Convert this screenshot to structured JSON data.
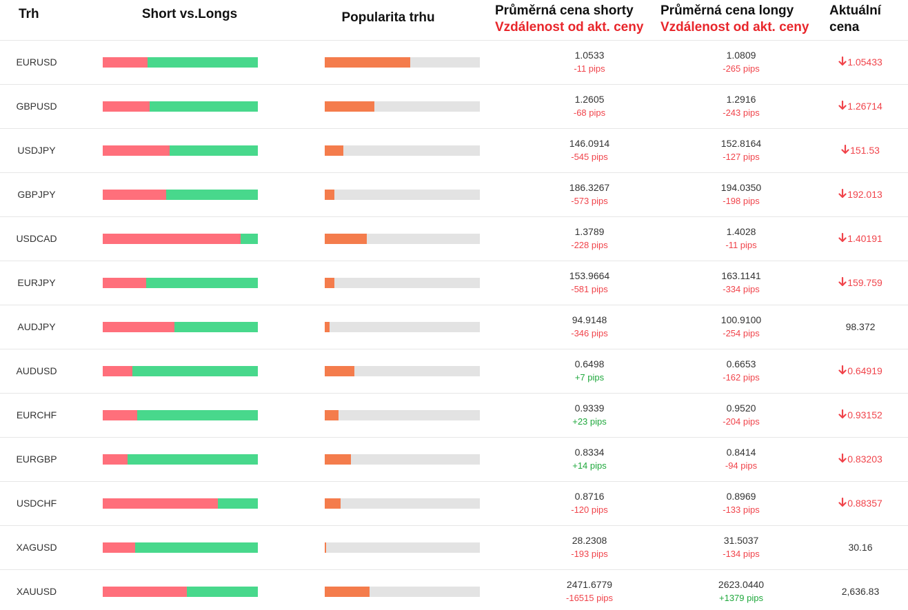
{
  "header": {
    "market": "Trh",
    "short_vs_longs": "Short vs.Longs",
    "popularity": "Popularita trhu",
    "avg_short": "Průměrná cena shorty",
    "avg_short_sub": "Vzdálenost od akt. ceny",
    "avg_long": "Průměrná cena longy",
    "avg_long_sub": "Vzdálenost od akt. ceny",
    "current_price_1": "Aktuální",
    "current_price_2": "cena"
  },
  "colors": {
    "short_bar": "#ff6f7b",
    "long_bar": "#48d88c",
    "popularity_fill": "#f47c4c",
    "popularity_track": "#e3e3e3",
    "negative": "#f0434a",
    "positive": "#1fa83c"
  },
  "rows": [
    {
      "symbol": "EURUSD",
      "short_pct": 29,
      "popularity_pct": 55,
      "short_price": "1.0533",
      "short_pips": "-11 pips",
      "long_price": "1.0809",
      "long_pips": "-265 pips",
      "current": "1.05433",
      "trend": "down",
      "icon": "arrow-down-icon"
    },
    {
      "symbol": "GBPUSD",
      "short_pct": 30,
      "popularity_pct": 32,
      "short_price": "1.2605",
      "short_pips": "-68 pips",
      "long_price": "1.2916",
      "long_pips": "-243 pips",
      "current": "1.26714",
      "trend": "down",
      "icon": "arrow-down-icon"
    },
    {
      "symbol": "USDJPY",
      "short_pct": 43,
      "popularity_pct": 12,
      "short_price": "146.0914",
      "short_pips": "-545 pips",
      "long_price": "152.8164",
      "long_pips": "-127 pips",
      "current": "151.53",
      "trend": "down",
      "icon": "arrow-down-icon"
    },
    {
      "symbol": "GBPJPY",
      "short_pct": 41,
      "popularity_pct": 6,
      "short_price": "186.3267",
      "short_pips": "-573 pips",
      "long_price": "194.0350",
      "long_pips": "-198 pips",
      "current": "192.013",
      "trend": "down",
      "icon": "arrow-down-icon"
    },
    {
      "symbol": "USDCAD",
      "short_pct": 89,
      "popularity_pct": 27,
      "short_price": "1.3789",
      "short_pips": "-228 pips",
      "long_price": "1.4028",
      "long_pips": "-11 pips",
      "current": "1.40191",
      "trend": "down",
      "icon": "arrow-down-icon"
    },
    {
      "symbol": "EURJPY",
      "short_pct": 28,
      "popularity_pct": 6,
      "short_price": "153.9664",
      "short_pips": "-581 pips",
      "long_price": "163.1141",
      "long_pips": "-334 pips",
      "current": "159.759",
      "trend": "down",
      "icon": "arrow-down-icon"
    },
    {
      "symbol": "AUDJPY",
      "short_pct": 46,
      "popularity_pct": 3,
      "short_price": "94.9148",
      "short_pips": "-346 pips",
      "long_price": "100.9100",
      "long_pips": "-254 pips",
      "current": "98.372",
      "trend": "flat",
      "icon": ""
    },
    {
      "symbol": "AUDUSD",
      "short_pct": 19,
      "popularity_pct": 19,
      "short_price": "0.6498",
      "short_pips": "+7 pips",
      "long_price": "0.6653",
      "long_pips": "-162 pips",
      "current": "0.64919",
      "trend": "down",
      "icon": "arrow-down-icon"
    },
    {
      "symbol": "EURCHF",
      "short_pct": 22,
      "popularity_pct": 9,
      "short_price": "0.9339",
      "short_pips": "+23 pips",
      "long_price": "0.9520",
      "long_pips": "-204 pips",
      "current": "0.93152",
      "trend": "down",
      "icon": "arrow-down-icon"
    },
    {
      "symbol": "EURGBP",
      "short_pct": 16,
      "popularity_pct": 17,
      "short_price": "0.8334",
      "short_pips": "+14 pips",
      "long_price": "0.8414",
      "long_pips": "-94 pips",
      "current": "0.83203",
      "trend": "down",
      "icon": "arrow-down-icon"
    },
    {
      "symbol": "USDCHF",
      "short_pct": 74,
      "popularity_pct": 10,
      "short_price": "0.8716",
      "short_pips": "-120 pips",
      "long_price": "0.8969",
      "long_pips": "-133 pips",
      "current": "0.88357",
      "trend": "down",
      "icon": "arrow-down-icon"
    },
    {
      "symbol": "XAGUSD",
      "short_pct": 21,
      "popularity_pct": 1,
      "short_price": "28.2308",
      "short_pips": "-193 pips",
      "long_price": "31.5037",
      "long_pips": "-134 pips",
      "current": "30.16",
      "trend": "flat",
      "icon": ""
    },
    {
      "symbol": "XAUUSD",
      "short_pct": 54,
      "popularity_pct": 29,
      "short_price": "2471.6779",
      "short_pips": "-16515 pips",
      "long_price": "2623.0440",
      "long_pips": "+1379 pips",
      "current": "2,636.83",
      "trend": "flat",
      "icon": ""
    }
  ]
}
